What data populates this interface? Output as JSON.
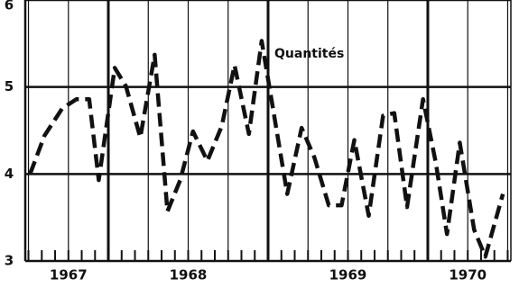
{
  "chart_data": {
    "type": "line",
    "annotation": "Quantités",
    "x": [
      1967.51,
      1967.6,
      1967.71,
      1967.8,
      1967.88,
      1967.94,
      1968.04,
      1968.11,
      1968.2,
      1968.29,
      1968.37,
      1968.45,
      1968.53,
      1968.62,
      1968.71,
      1968.79,
      1968.88,
      1968.96,
      1969.04,
      1969.12,
      1969.21,
      1969.29,
      1969.38,
      1969.46,
      1969.54,
      1969.63,
      1969.72,
      1969.79,
      1969.87,
      1969.97,
      1970.05,
      1970.12,
      1970.2,
      1970.29,
      1970.36,
      1970.47
    ],
    "series": [
      {
        "name": "Quantités",
        "color": "#111111",
        "values": [
          4.0,
          4.44,
          4.75,
          4.86,
          4.86,
          3.93,
          5.22,
          5.01,
          4.42,
          5.37,
          3.57,
          3.93,
          4.49,
          4.15,
          4.55,
          5.25,
          4.46,
          5.53,
          4.65,
          3.77,
          4.53,
          4.19,
          3.64,
          3.64,
          4.39,
          3.52,
          4.67,
          4.7,
          3.62,
          4.86,
          4.13,
          3.31,
          4.36,
          3.36,
          3.05,
          3.77
        ]
      }
    ],
    "xlim": [
      1967.48,
      1970.52
    ],
    "xticks": [
      {
        "value": 1967.75,
        "label": "1967"
      },
      {
        "value": 1968.5,
        "label": "1968"
      },
      {
        "value": 1969.5,
        "label": "1969"
      },
      {
        "value": 1970.25,
        "label": "1970"
      }
    ],
    "ylim": [
      3,
      6
    ],
    "yticks": [
      3,
      4,
      5,
      6
    ],
    "grid": true
  }
}
